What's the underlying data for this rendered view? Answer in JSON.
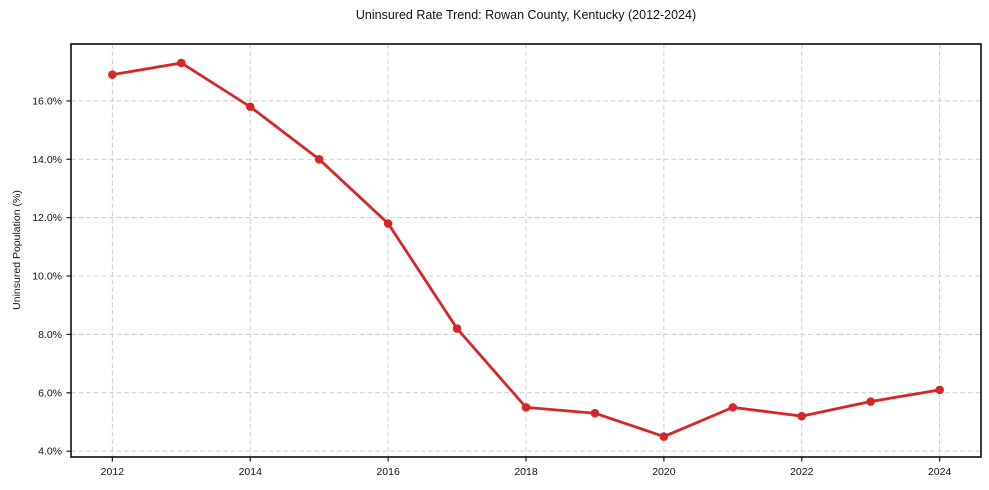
{
  "chart_data": {
    "type": "line",
    "title": "Uninsured Rate Trend: Rowan County, Kentucky (2012-2024)",
    "xlabel": "",
    "ylabel": "Uninsured Population (%)",
    "x": [
      2012,
      2013,
      2014,
      2015,
      2016,
      2017,
      2018,
      2019,
      2020,
      2021,
      2022,
      2023,
      2024
    ],
    "series": [
      {
        "name": "Uninsured rate",
        "values": [
          16.9,
          17.3,
          15.8,
          14.0,
          11.8,
          8.2,
          5.5,
          5.3,
          4.5,
          5.5,
          5.2,
          5.7,
          6.1
        ],
        "color": "#d62728",
        "marker": "circle"
      }
    ],
    "xlim": [
      2011.4,
      2024.6
    ],
    "ylim": [
      3.8,
      17.95
    ],
    "xticks": [
      2012,
      2014,
      2016,
      2018,
      2020,
      2022,
      2024
    ],
    "xtick_labels": [
      "2012",
      "2014",
      "2016",
      "2018",
      "2020",
      "2022",
      "2024"
    ],
    "yticks": [
      4,
      6,
      8,
      10,
      12,
      14,
      16
    ],
    "ytick_labels": [
      "4.0%",
      "6.0%",
      "8.0%",
      "10.0%",
      "12.0%",
      "14.0%",
      "16.0%"
    ],
    "grid": true,
    "legend_position": "none",
    "colors": {
      "line": "#d62728",
      "grid": "#cccccc",
      "spine": "#1a1a1a",
      "text": "#111111",
      "background": "#ffffff"
    }
  }
}
